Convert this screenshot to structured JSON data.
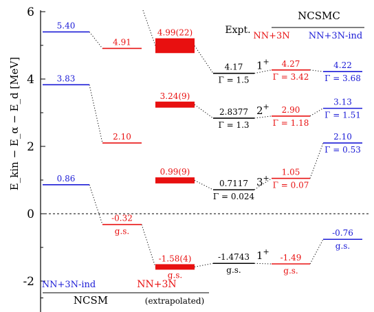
{
  "chart_data": {
    "type": "level-scheme",
    "ylabel": "E_kin − E_α − E_d [MeV]",
    "ylim": [
      -2.9,
      6
    ],
    "yticks": [
      -2,
      0,
      2,
      4,
      6
    ],
    "zero_line": "dashed",
    "colors": {
      "ncsm_nn3nind": "#1a1ad6",
      "nn3n": "#e81010",
      "expt": "#000000"
    },
    "headers": {
      "expt": "Expt.",
      "ncsmc": "NCSMC",
      "ncsmc_nn3n": "NN+3N",
      "ncsmc_nn3nind": "NN+3N-ind",
      "ncsm": "NCSM",
      "ncsm_nn3nind": "NN+3N-ind",
      "ncsm_nn3n": "NN+3N",
      "extrapolated": "(extrapolated)"
    },
    "columns": [
      {
        "id": "ncsm_ind",
        "color": "#1a1ad6",
        "levels": [
          {
            "energy": 5.4,
            "label": "5.40"
          },
          {
            "energy": 3.83,
            "label": "3.83"
          },
          {
            "energy": 0.86,
            "label": "0.86"
          }
        ]
      },
      {
        "id": "ncsm_3n",
        "color": "#e81010",
        "levels": [
          {
            "energy": 4.91,
            "label": "4.91"
          },
          {
            "energy": 2.1,
            "label": "2.10"
          },
          {
            "energy": -0.32,
            "label": "-0.32",
            "sub": "g.s."
          }
        ]
      },
      {
        "id": "ncsm_extrap",
        "color": "#e81010",
        "levels": [
          {
            "energy": 4.99,
            "err": 0.22,
            "label": "4.99(22)"
          },
          {
            "energy": 3.24,
            "err": 0.09,
            "label": "3.24(9)"
          },
          {
            "energy": 0.99,
            "err": 0.09,
            "label": "0.99(9)"
          },
          {
            "energy": -1.58,
            "err": 0.04,
            "label": "-1.58(4)",
            "sub": "g.s."
          }
        ]
      },
      {
        "id": "expt",
        "color": "#000000",
        "levels": [
          {
            "energy": 4.17,
            "label": "4.17",
            "sub": "Γ = 1.5",
            "jpi": "1",
            "parity": "+"
          },
          {
            "energy": 2.8377,
            "label": "2.8377",
            "sub": "Γ = 1.3",
            "jpi": "2",
            "parity": "+"
          },
          {
            "energy": 0.7117,
            "label": "0.7117",
            "sub": "Γ = 0.024",
            "jpi": "3",
            "parity": "+"
          },
          {
            "energy": -1.4743,
            "label": "-1.4743",
            "sub": "g.s.",
            "jpi": "1",
            "parity": "+"
          }
        ]
      },
      {
        "id": "ncsmc_3n",
        "color": "#e81010",
        "levels": [
          {
            "energy": 4.27,
            "label": "4.27",
            "sub": "Γ = 3.42"
          },
          {
            "energy": 2.9,
            "label": "2.90",
            "sub": "Γ = 1.18"
          },
          {
            "energy": 1.05,
            "label": "1.05",
            "sub": "Γ = 0.07"
          },
          {
            "energy": -1.49,
            "label": "-1.49",
            "sub": "g.s."
          }
        ]
      },
      {
        "id": "ncsmc_ind",
        "color": "#1a1ad6",
        "levels": [
          {
            "energy": 4.22,
            "label": "4.22",
            "sub": "Γ = 3.68"
          },
          {
            "energy": 3.13,
            "label": "3.13",
            "sub": "Γ = 1.51"
          },
          {
            "energy": 2.1,
            "label": "2.10",
            "sub": "Γ = 0.53"
          },
          {
            "energy": -0.76,
            "label": "-0.76",
            "sub": "g.s."
          }
        ]
      }
    ],
    "connections": [
      {
        "from": [
          "ncsm_ind",
          0
        ],
        "to": [
          "ncsm_3n",
          0
        ]
      },
      {
        "from": [
          "ncsm_ind",
          1
        ],
        "to": [
          "ncsm_3n",
          1
        ]
      },
      {
        "from": [
          "ncsm_ind",
          2
        ],
        "to": [
          "ncsm_3n",
          2
        ]
      },
      {
        "from": [
          "ncsm_3n",
          2
        ],
        "to": [
          "ncsm_extrap",
          3
        ]
      },
      {
        "from": [
          "ncsm_extrap",
          0
        ],
        "to": [
          "expt",
          0
        ]
      },
      {
        "from": [
          "ncsm_extrap",
          1
        ],
        "to": [
          "expt",
          1
        ]
      },
      {
        "from": [
          "ncsm_extrap",
          2
        ],
        "to": [
          "expt",
          2
        ]
      },
      {
        "from": [
          "ncsm_extrap",
          3
        ],
        "to": [
          "expt",
          3
        ]
      },
      {
        "from": [
          "expt",
          0
        ],
        "to": [
          "ncsmc_3n",
          0
        ]
      },
      {
        "from": [
          "expt",
          1
        ],
        "to": [
          "ncsmc_3n",
          1
        ]
      },
      {
        "from": [
          "expt",
          2
        ],
        "to": [
          "ncsmc_3n",
          2
        ]
      },
      {
        "from": [
          "expt",
          3
        ],
        "to": [
          "ncsmc_3n",
          3
        ]
      },
      {
        "from": [
          "ncsmc_3n",
          0
        ],
        "to": [
          "ncsmc_ind",
          0
        ]
      },
      {
        "from": [
          "ncsmc_3n",
          1
        ],
        "to": [
          "ncsmc_ind",
          1
        ]
      },
      {
        "from": [
          "ncsmc_3n",
          2
        ],
        "to": [
          "ncsmc_ind",
          2
        ]
      },
      {
        "from": [
          "ncsmc_3n",
          3
        ],
        "to": [
          "ncsmc_ind",
          3
        ]
      }
    ]
  }
}
